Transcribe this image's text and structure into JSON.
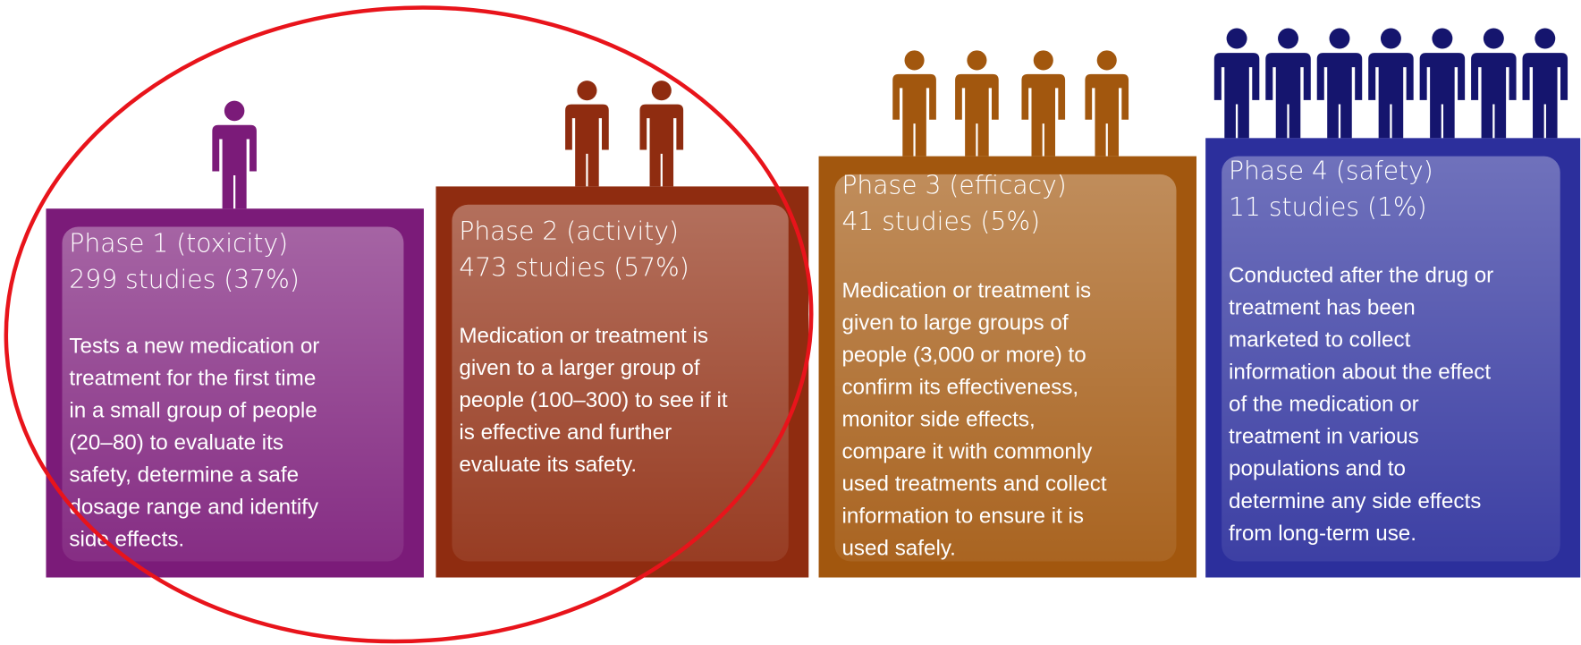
{
  "phases": [
    {
      "title": "Phase 1 (toxicity)",
      "studies": "299 studies (37%)",
      "description": [
        "Tests a new medication or",
        "treatment for the first time",
        "in a small group of people",
        "(20–80) to evaluate its",
        "safety, determine a safe",
        "dosage range and identify",
        "side effects."
      ]
    },
    {
      "title": "Phase 2 (activity)",
      "studies": "473 studies (57%)",
      "description": [
        "Medication or treatment is",
        "given to a larger group of",
        "people (100–300) to see if it",
        "is effective and further",
        "evaluate its safety."
      ]
    },
    {
      "title": "Phase 3 (efficacy)",
      "studies": "41 studies (5%)",
      "description": [
        "Medication or treatment is",
        "given to large groups of",
        "people (3,000 or more) to",
        "confirm its effectiveness,",
        "monitor side effects,",
        "compare it with commonly",
        "used treatments and collect",
        "information to ensure it is",
        "used safely."
      ]
    },
    {
      "title": "Phase 4 (safety)",
      "studies": "11 studies (1%)",
      "description": [
        "Conducted after the drug or",
        "treatment has been",
        "marketed to collect",
        "information about the effect",
        "of the medication or",
        "treatment in various",
        "populations and to",
        "determine any side effects",
        "from long-term use."
      ]
    }
  ]
}
